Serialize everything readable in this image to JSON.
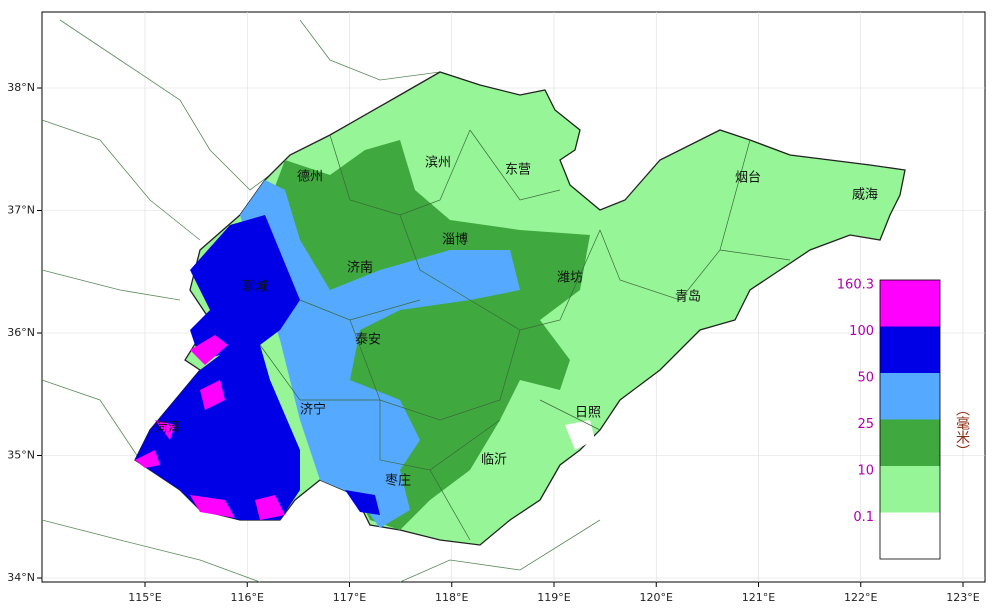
{
  "map": {
    "lon_ticks": [
      {
        "value": 115,
        "label": "115°E"
      },
      {
        "value": 116,
        "label": "116°E"
      },
      {
        "value": 117,
        "label": "117°E"
      },
      {
        "value": 118,
        "label": "118°E"
      },
      {
        "value": 119,
        "label": "119°E"
      },
      {
        "value": 120,
        "label": "120°E"
      },
      {
        "value": 121,
        "label": "121°E"
      },
      {
        "value": 122,
        "label": "122°E"
      },
      {
        "value": 123,
        "label": "123°E"
      }
    ],
    "lat_ticks": [
      {
        "value": 34,
        "label": "34°N"
      },
      {
        "value": 35,
        "label": "35°N"
      },
      {
        "value": 36,
        "label": "36°N"
      },
      {
        "value": 37,
        "label": "37°N"
      },
      {
        "value": 38,
        "label": "38°N"
      }
    ],
    "cities": [
      "德州",
      "滨州",
      "东营",
      "烟台",
      "威海",
      "淄博",
      "济南",
      "潍坊",
      "聊城",
      "青岛",
      "泰安",
      "济宁",
      "日照",
      "菏泽",
      "临沂",
      "枣庄"
    ],
    "legend": {
      "unit": "（毫米）",
      "levels": [
        {
          "value": 160.3,
          "color": "#ff00ff"
        },
        {
          "value": 100,
          "color": "#0000e6"
        },
        {
          "value": 50,
          "color": "#55aaff"
        },
        {
          "value": 25,
          "color": "#3fa83f"
        },
        {
          "value": 10,
          "color": "#96f596"
        },
        {
          "value": 0.1,
          "color": "#ffffff"
        }
      ]
    }
  }
}
